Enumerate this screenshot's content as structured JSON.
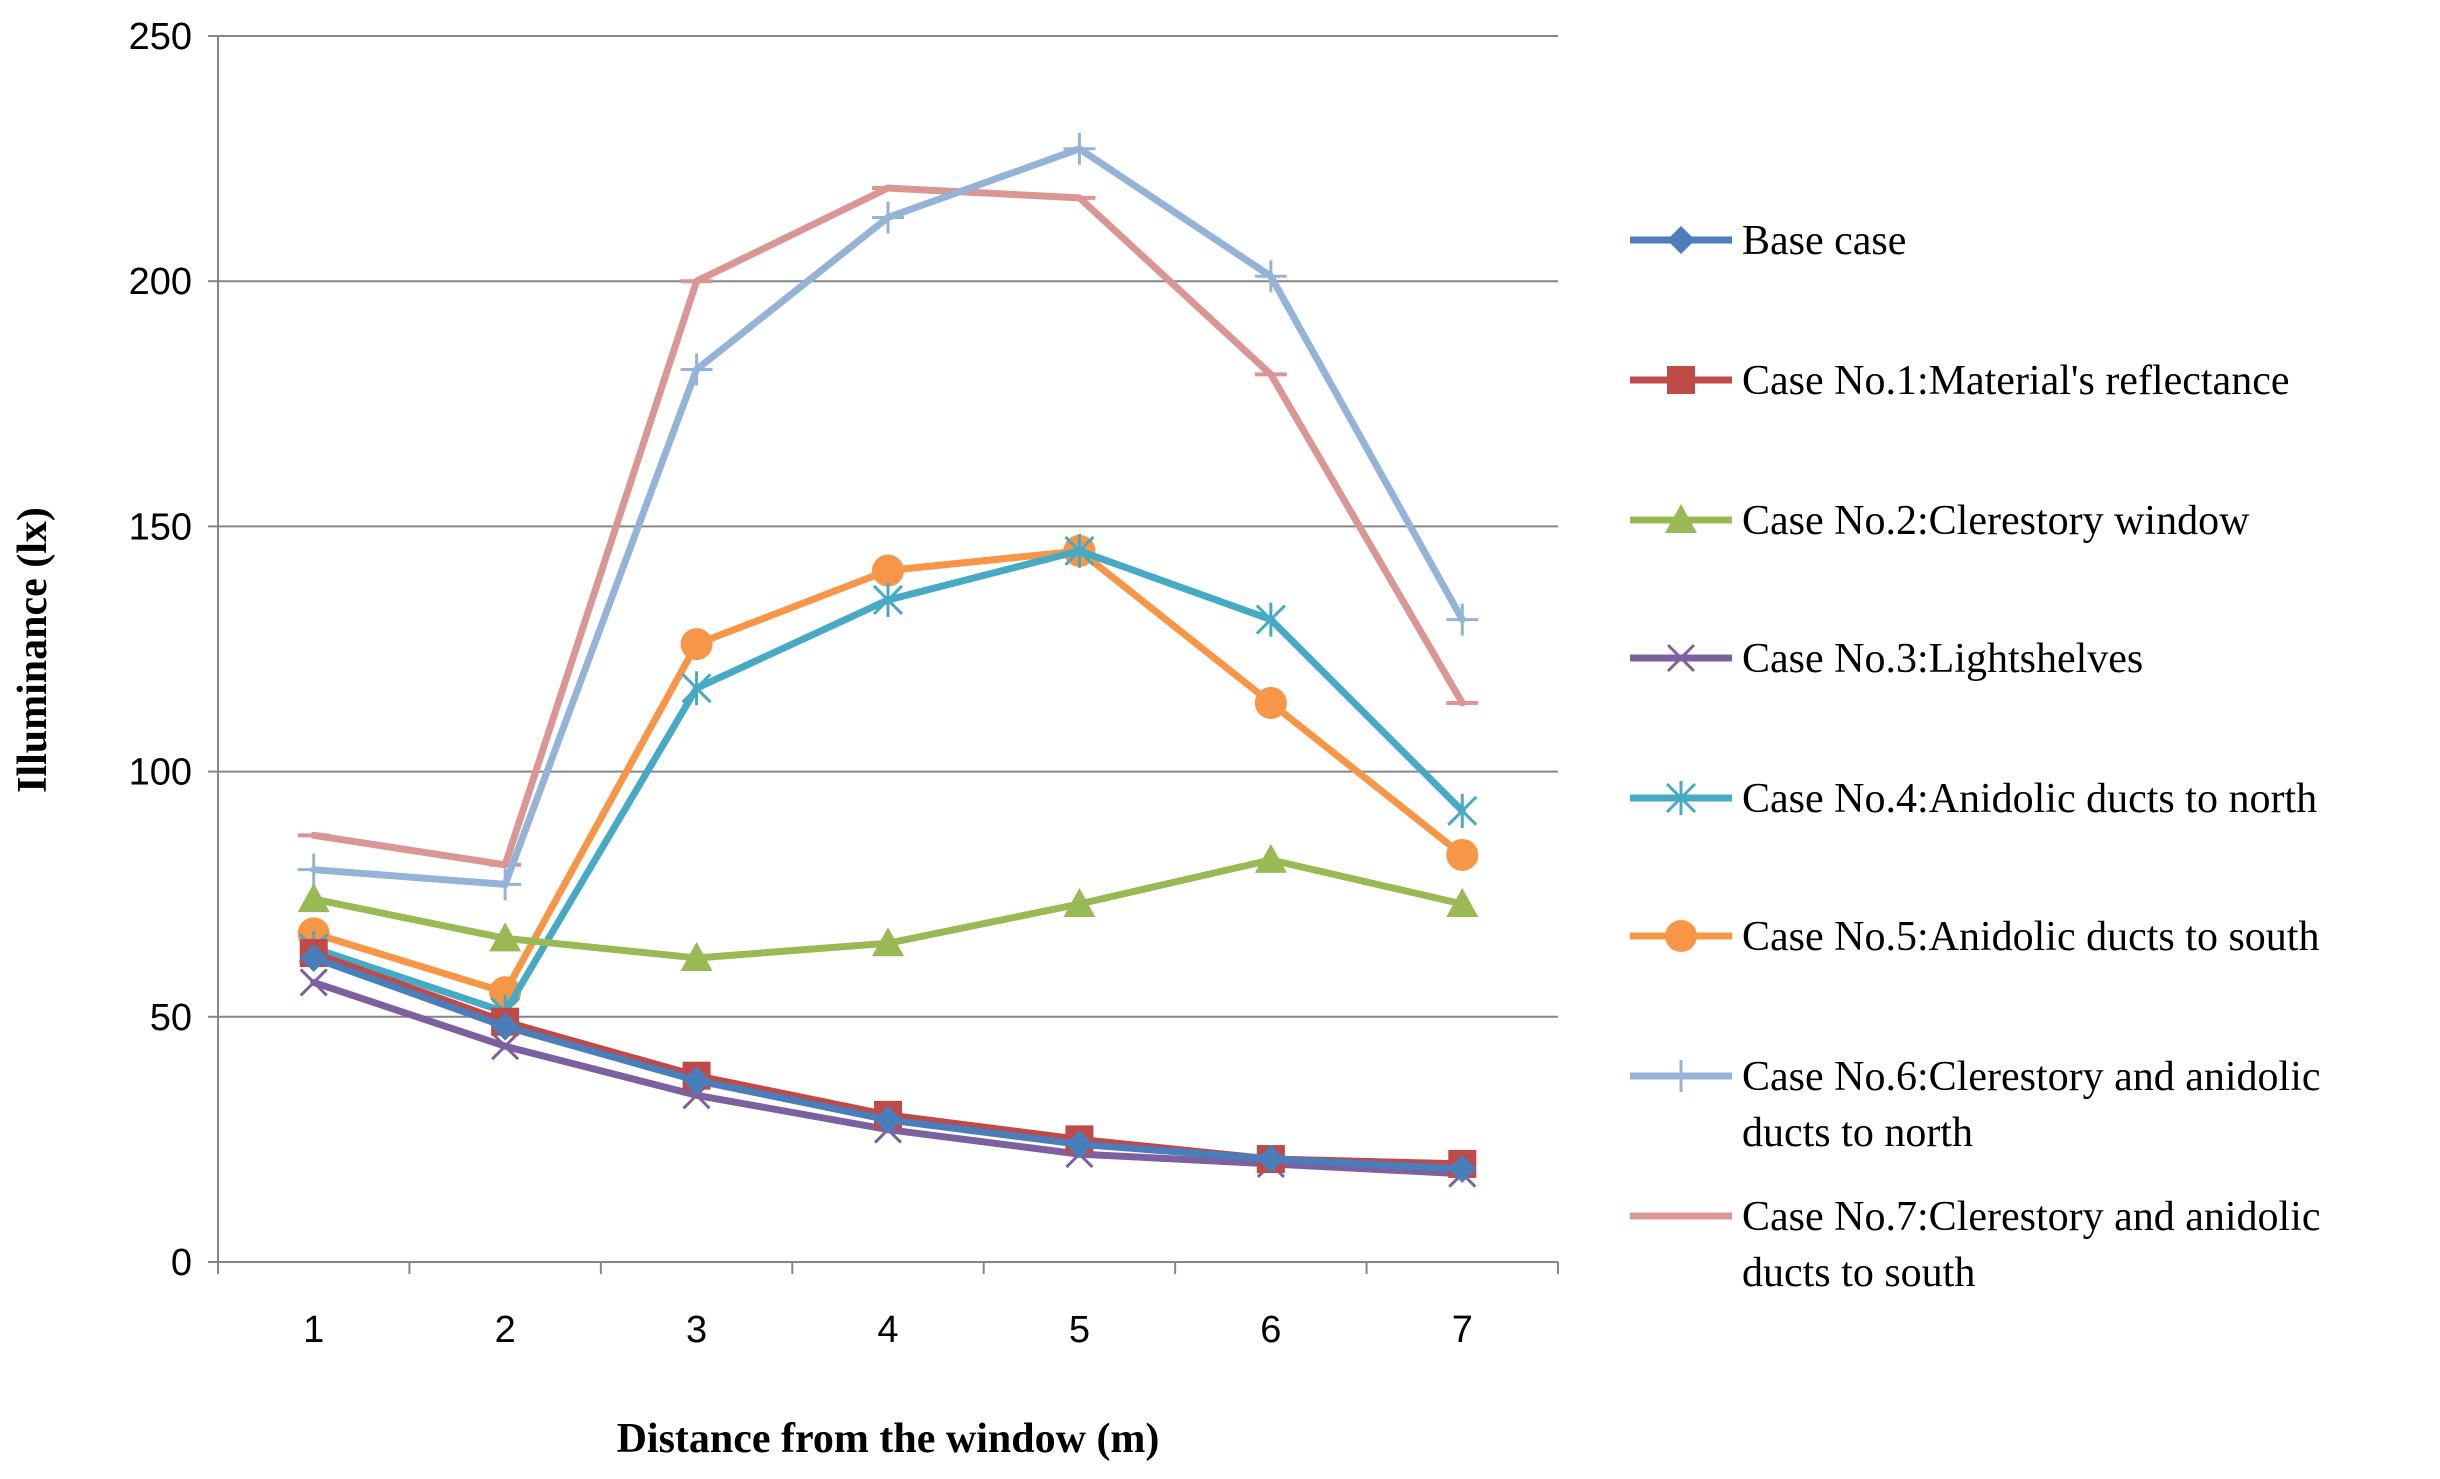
{
  "chart_data": {
    "type": "line",
    "title": "",
    "xlabel": "Distance from the window (m)",
    "ylabel": "Illuminance (lx)",
    "x": [
      1,
      2,
      3,
      4,
      5,
      6,
      7
    ],
    "ylim": [
      0,
      250
    ],
    "yticks": [
      0,
      50,
      100,
      150,
      200,
      250
    ],
    "grid": true,
    "legend_position": "right",
    "series": [
      {
        "name": "Base case",
        "color": "#4A7EBB",
        "marker": "diamond",
        "legend_lines": [
          "Base case"
        ],
        "values": [
          62,
          48,
          37,
          29,
          24,
          21,
          19
        ]
      },
      {
        "name": "Case No.1:Material's reflectance",
        "color": "#BE4B48",
        "marker": "square",
        "legend_lines": [
          "Case No.1:Material's reflectance"
        ],
        "values": [
          63,
          49,
          38,
          30,
          25,
          21,
          20
        ]
      },
      {
        "name": "Case No.2:Clerestory window",
        "color": "#98B954",
        "marker": "triangle",
        "legend_lines": [
          "Case No.2:Clerestory window"
        ],
        "values": [
          74,
          66,
          62,
          65,
          73,
          82,
          73
        ]
      },
      {
        "name": "Case No.3:Lightshelves",
        "color": "#7D60A0",
        "marker": "x",
        "legend_lines": [
          "Case No.3:Lightshelves"
        ],
        "values": [
          57,
          44,
          34,
          27,
          22,
          20,
          18
        ]
      },
      {
        "name": "Case No.4:Anidolic ducts to north",
        "color": "#46AAC5",
        "marker": "star",
        "legend_lines": [
          "Case No.4:Anidolic ducts to north"
        ],
        "values": [
          64,
          51,
          117,
          135,
          145,
          131,
          92
        ]
      },
      {
        "name": "Case No.5:Anidolic ducts to south",
        "color": "#F79646",
        "marker": "circle",
        "legend_lines": [
          "Case No.5:Anidolic ducts to south"
        ],
        "values": [
          67,
          55,
          126,
          141,
          145,
          114,
          83
        ]
      },
      {
        "name": "Case No.6:Clerestory and anidolic ducts to north",
        "color": "#95B3D7",
        "marker": "plus",
        "legend_lines": [
          "Case No.6:Clerestory and anidolic",
          "ducts to north"
        ],
        "values": [
          80,
          77,
          182,
          213,
          227,
          201,
          131
        ]
      },
      {
        "name": "Case No.7:Clerestory and anidolic ducts to south",
        "color": "#D99694",
        "marker": "dash",
        "legend_lines": [
          "Case No.7:Clerestory and anidolic",
          "ducts to south"
        ],
        "values": [
          87,
          81,
          200,
          219,
          217,
          181,
          114
        ]
      }
    ]
  }
}
